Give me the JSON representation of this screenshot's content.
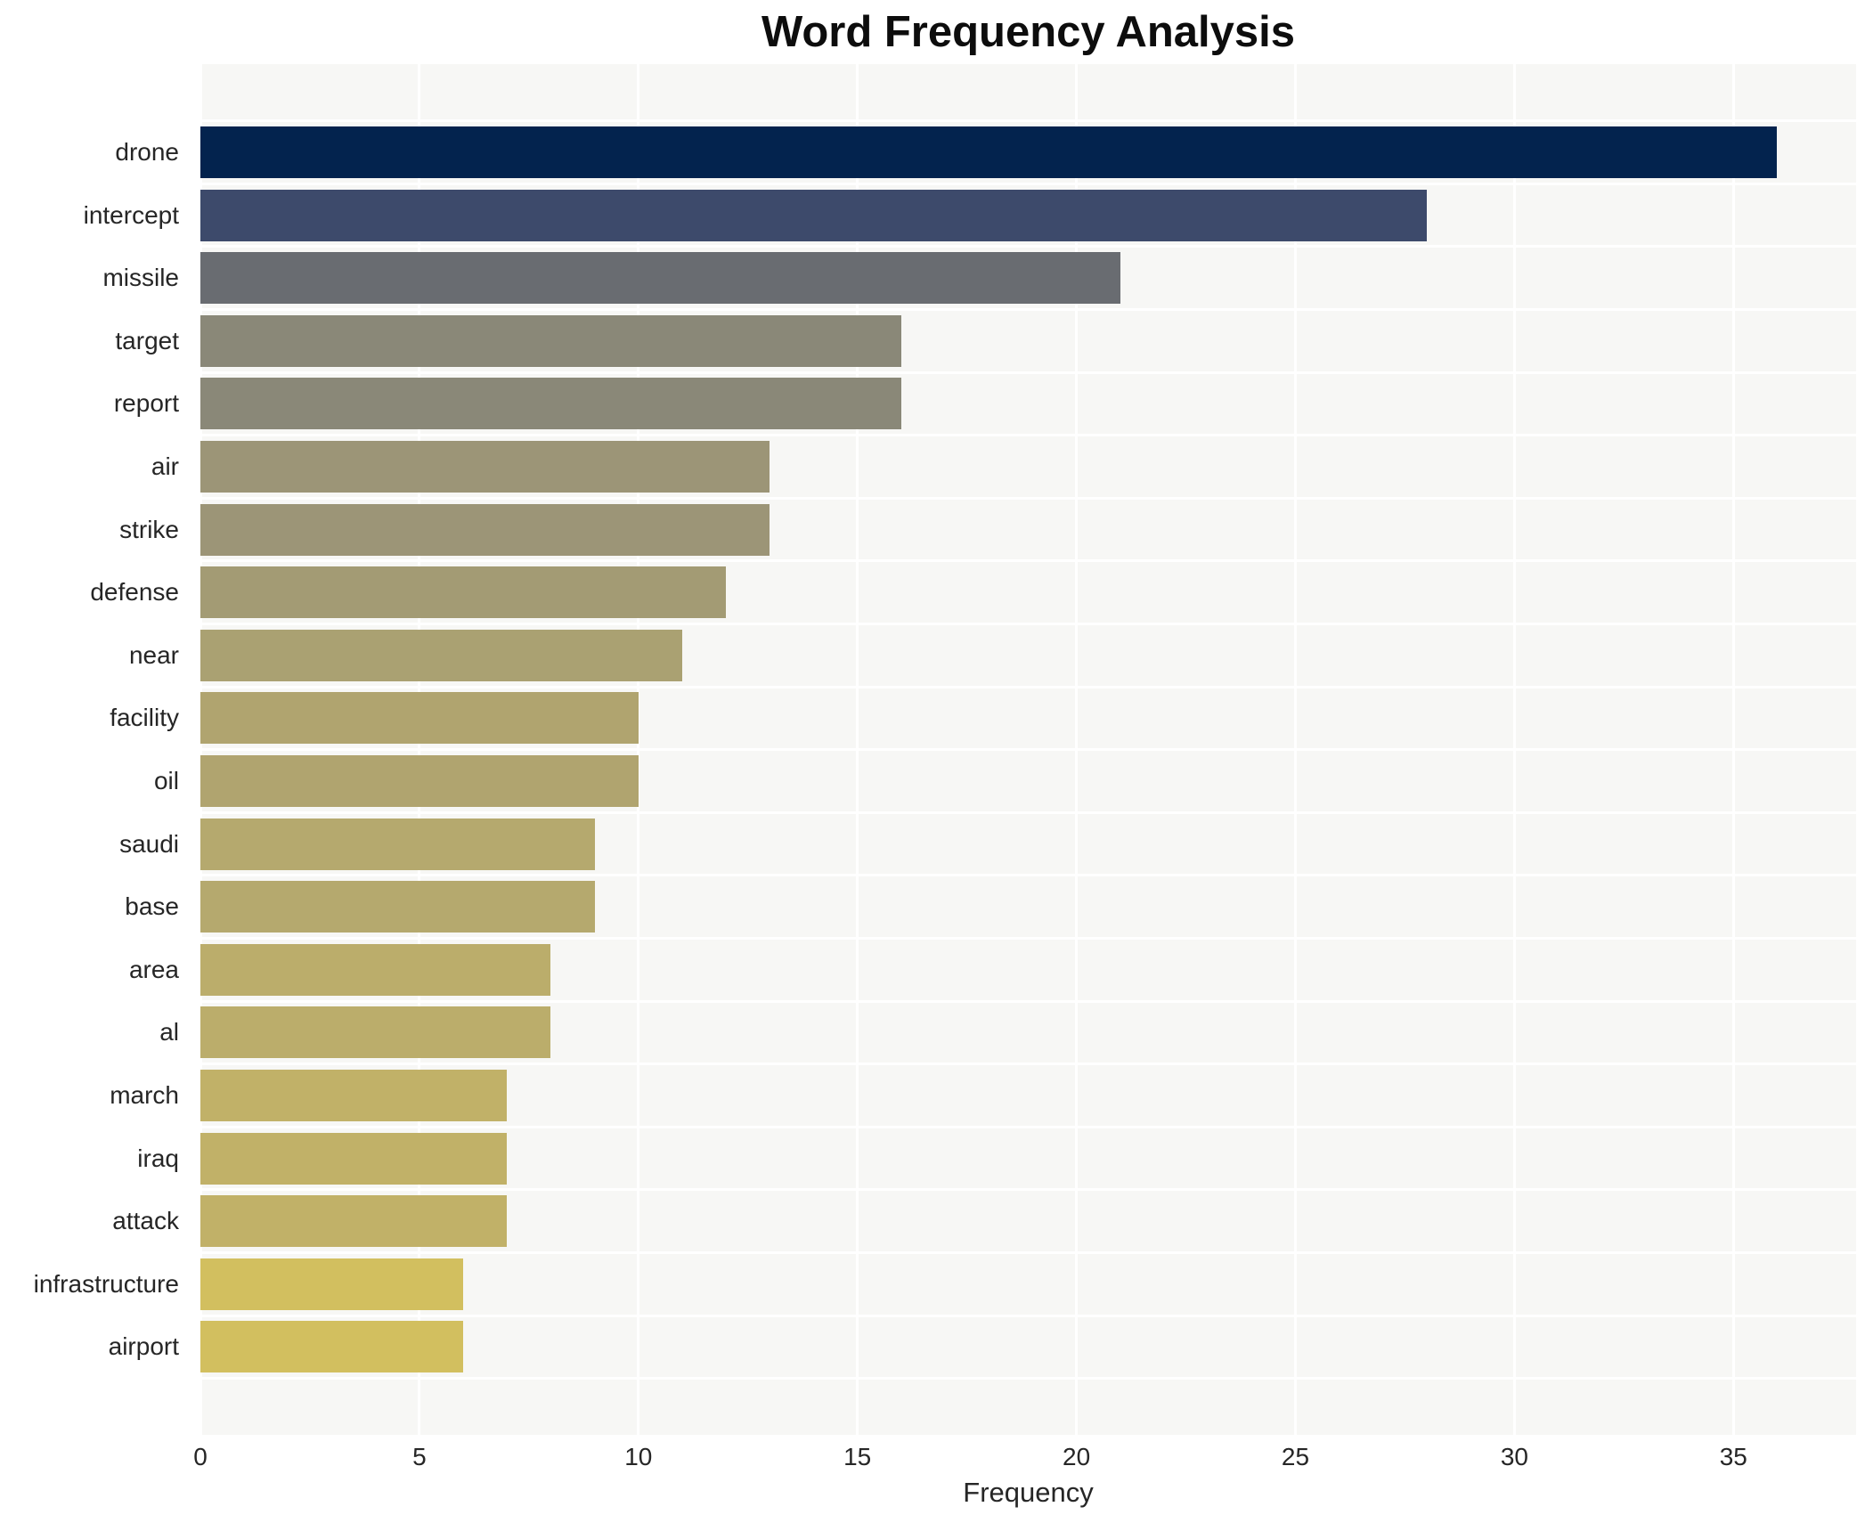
{
  "title": "Word Frequency Analysis",
  "chart_data": {
    "type": "bar",
    "orientation": "horizontal",
    "title": "Word Frequency Analysis",
    "xlabel": "Frequency",
    "ylabel": "",
    "categories": [
      "drone",
      "intercept",
      "missile",
      "target",
      "report",
      "air",
      "strike",
      "defense",
      "near",
      "facility",
      "oil",
      "saudi",
      "base",
      "area",
      "al",
      "march",
      "iraq",
      "attack",
      "infrastructure",
      "airport"
    ],
    "values": [
      36,
      28,
      21,
      16,
      16,
      13,
      13,
      12,
      11,
      10,
      10,
      9,
      9,
      8,
      8,
      7,
      7,
      7,
      6,
      6
    ],
    "bar_colors": [
      "#03234e",
      "#3d4a6b",
      "#696c71",
      "#8a8878",
      "#8a8878",
      "#9c9577",
      "#9c9577",
      "#a39b74",
      "#aaa172",
      "#b0a46f",
      "#b0a46f",
      "#b5a96e",
      "#b5a96e",
      "#bbad6b",
      "#bbad6b",
      "#c1b168",
      "#c1b168",
      "#c1b168",
      "#d2bf5f",
      "#d2bf5f"
    ],
    "x_ticks": [
      0,
      5,
      10,
      15,
      20,
      25,
      30,
      35
    ],
    "xlim": [
      0,
      37.8
    ],
    "grid": true,
    "legend": "none",
    "plot_background": "#f7f7f5",
    "gridline_color": "#ffffff",
    "text_color": "#262626",
    "title_color": "#0d0d0d"
  }
}
